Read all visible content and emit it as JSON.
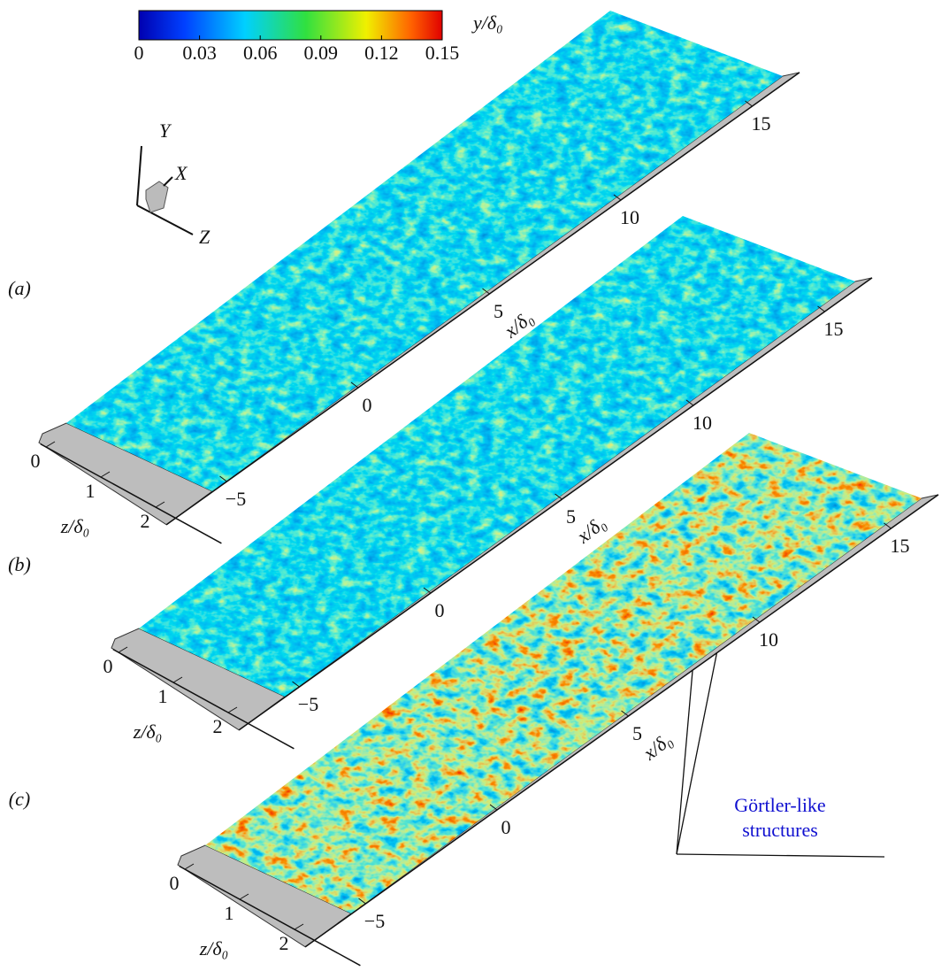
{
  "colorbar": {
    "label": "y/δ₀",
    "clim": [
      0,
      0.15
    ],
    "ticks": [
      0,
      0.03,
      0.06,
      0.09,
      0.12,
      0.15
    ]
  },
  "triad": {
    "y": "Y",
    "x": "X",
    "z": "Z"
  },
  "panels": [
    {
      "label": "(a)",
      "x_label": "x/δ₀",
      "z_label": "z/δ₀",
      "xticks": [
        {
          "value": -5,
          "label": "−5"
        },
        0,
        5,
        10,
        15
      ],
      "zticks": [
        0,
        1,
        2
      ]
    },
    {
      "label": "(b)",
      "x_label": "x/δ₀",
      "z_label": "z/δ₀",
      "xticks": [
        {
          "value": -5,
          "label": "−5"
        },
        0,
        5,
        10,
        15
      ],
      "zticks": [
        0,
        1,
        2
      ]
    },
    {
      "label": "(c)",
      "x_label": "x/δ₀",
      "z_label": "z/δ₀",
      "xticks": [
        {
          "value": -5,
          "label": "−5"
        },
        0,
        5,
        10,
        15
      ],
      "zticks": [
        0,
        1,
        2
      ]
    }
  ],
  "annotation": {
    "lines": [
      "Görtler-like",
      "structures"
    ]
  }
}
